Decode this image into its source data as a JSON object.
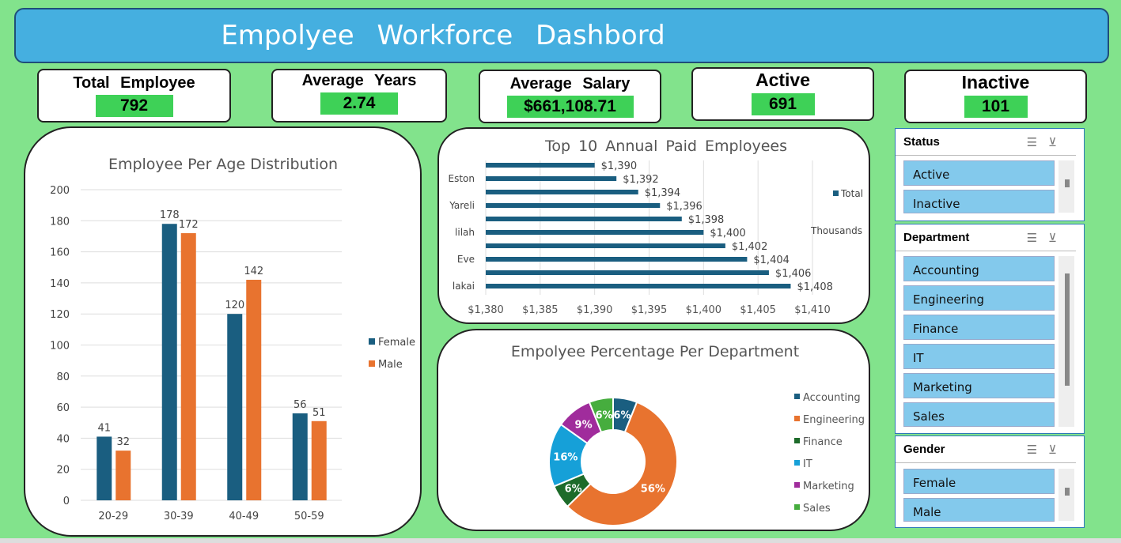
{
  "header": {
    "title": "Empolyee Workforce Dashbord"
  },
  "kpis": [
    {
      "label": "Total Employee",
      "value": "792"
    },
    {
      "label": "Average Years",
      "value": "2.74"
    },
    {
      "label": "Average Salary",
      "value": "$661,108.71"
    },
    {
      "label": "Active",
      "value": "691"
    },
    {
      "label": "Inactive",
      "value": "101"
    }
  ],
  "colors": {
    "background": "#82e38c",
    "header": "#45afe0",
    "female": "#1a5e80",
    "male": "#e8732f",
    "kpi_value": "#3ed157",
    "slicer_item": "#83c9ec"
  },
  "chart_data": [
    {
      "type": "bar",
      "title": "Employee Per Age Distribution",
      "categories": [
        "20-29",
        "30-39",
        "40-49",
        "50-59"
      ],
      "series": [
        {
          "name": "Female",
          "values": [
            41,
            178,
            120,
            56
          ]
        },
        {
          "name": "Male",
          "values": [
            32,
            172,
            142,
            51
          ]
        }
      ],
      "ylim": [
        0,
        200
      ],
      "yticks": [
        "0",
        "20",
        "40",
        "60",
        "80",
        "100",
        "120",
        "140",
        "160",
        "180",
        "200"
      ],
      "grid": true,
      "legend": "right"
    },
    {
      "type": "bar",
      "orientation": "horizontal",
      "title": "Top 10 Annual Paid Employees",
      "categories": [
        "",
        "Eston",
        "",
        "Yareli",
        "",
        "lilah",
        "",
        "Eve",
        "",
        "lakai"
      ],
      "series": [
        {
          "name": "Total",
          "values": [
            1390,
            1392,
            1394,
            1396,
            1398,
            1400,
            1402,
            1404,
            1406,
            1408
          ]
        }
      ],
      "value_labels": [
        "$1,390",
        "$1,392",
        "$1,394",
        "$1,396",
        "$1,398",
        "$1,400",
        "$1,402",
        "$1,404",
        "$1,406",
        "$1,408"
      ],
      "xlim": [
        1380,
        1410
      ],
      "xticks": [
        "$1,380",
        "$1,385",
        "$1,390",
        "$1,395",
        "$1,400",
        "$1,405",
        "$1,410"
      ],
      "unit_label": "Thousands",
      "grid": true,
      "legend": "right"
    },
    {
      "type": "pie",
      "donut": true,
      "title": "Empolyee Percentage Per Department",
      "categories": [
        "Accounting",
        "Engineering",
        "Finance",
        "IT",
        "Marketing",
        "Sales"
      ],
      "values": [
        6,
        56,
        6,
        16,
        9,
        6
      ],
      "labels": [
        "6%",
        "56%",
        "6%",
        "16%",
        "9%",
        "6%"
      ],
      "colors": [
        "#1a5e80",
        "#e8732f",
        "#1d6b2a",
        "#16a0d8",
        "#a02c9c",
        "#46ad3e"
      ],
      "legend": "right"
    }
  ],
  "slicers": {
    "status": {
      "title": "Status",
      "items": [
        "Active",
        "Inactive"
      ]
    },
    "department": {
      "title": "Department",
      "items": [
        "Accounting",
        "Engineering",
        "Finance",
        "IT",
        "Marketing",
        "Sales"
      ]
    },
    "gender": {
      "title": "Gender",
      "items": [
        "Female",
        "Male"
      ]
    }
  }
}
